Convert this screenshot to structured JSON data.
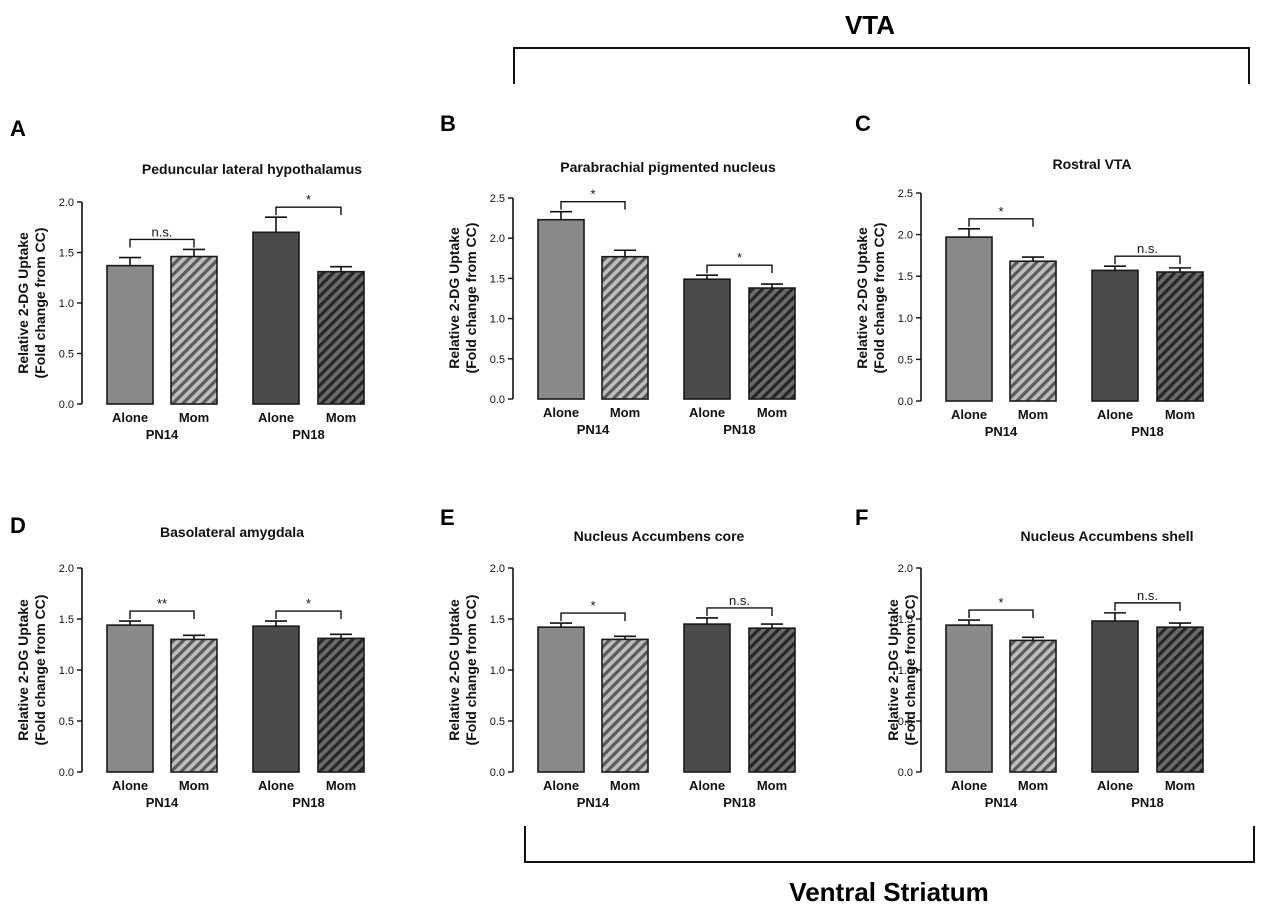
{
  "brackets": {
    "top_label": "VTA",
    "bottom_label": "Ventral Striatum"
  },
  "chart_data": [
    {
      "type": "bar",
      "panel": "A",
      "title": "Peduncular lateral hypothalamus",
      "ylabel": [
        "Relative 2-DG Uptake",
        "(Fold change from CC)"
      ],
      "ylim": [
        0,
        2.0
      ],
      "yticks": [
        "0.0",
        "0.5",
        "1.0",
        "1.5",
        "2.0"
      ],
      "groups": [
        "PN14",
        "PN18"
      ],
      "categories": [
        "Alone",
        "Mom"
      ],
      "series": [
        {
          "name": "PN14",
          "values": [
            1.37,
            1.46
          ],
          "errors": [
            0.08,
            0.07
          ]
        },
        {
          "name": "PN18",
          "values": [
            1.7,
            1.31
          ],
          "errors": [
            0.15,
            0.05
          ]
        }
      ],
      "significance": [
        "n.s.",
        "*"
      ]
    },
    {
      "type": "bar",
      "panel": "B",
      "title": "Parabrachial pigmented nucleus",
      "ylabel": [
        "Relative 2-DG Uptake",
        "(Fold change from CC)"
      ],
      "ylim": [
        0,
        2.5
      ],
      "yticks": [
        "0.0",
        "0.5",
        "1.0",
        "1.5",
        "2.0",
        "2.5"
      ],
      "groups": [
        "PN14",
        "PN18"
      ],
      "categories": [
        "Alone",
        "Mom"
      ],
      "series": [
        {
          "name": "PN14",
          "values": [
            2.23,
            1.77
          ],
          "errors": [
            0.1,
            0.08
          ]
        },
        {
          "name": "PN18",
          "values": [
            1.49,
            1.38
          ],
          "errors": [
            0.05,
            0.05
          ]
        }
      ],
      "significance": [
        "*",
        "*"
      ]
    },
    {
      "type": "bar",
      "panel": "C",
      "title": "Rostral VTA",
      "ylabel": [
        "Relative 2-DG Uptake",
        "(Fold change from CC)"
      ],
      "ylim": [
        0,
        2.5
      ],
      "yticks": [
        "0.0",
        "0.5",
        "1.0",
        "1.5",
        "2.0",
        "2.5"
      ],
      "groups": [
        "PN14",
        "PN18"
      ],
      "categories": [
        "Alone",
        "Mom"
      ],
      "series": [
        {
          "name": "PN14",
          "values": [
            1.97,
            1.68
          ],
          "errors": [
            0.1,
            0.05
          ]
        },
        {
          "name": "PN18",
          "values": [
            1.57,
            1.55
          ],
          "errors": [
            0.05,
            0.05
          ]
        }
      ],
      "significance": [
        "*",
        "n.s."
      ]
    },
    {
      "type": "bar",
      "panel": "D",
      "title": "Basolateral amygdala",
      "ylabel": [
        "Relative 2-DG Uptake",
        "(Fold change from CC)"
      ],
      "ylim": [
        0,
        2.0
      ],
      "yticks": [
        "0.0",
        "0.5",
        "1.0",
        "1.5",
        "2.0"
      ],
      "groups": [
        "PN14",
        "PN18"
      ],
      "categories": [
        "Alone",
        "Mom"
      ],
      "series": [
        {
          "name": "PN14",
          "values": [
            1.44,
            1.3
          ],
          "errors": [
            0.04,
            0.04
          ]
        },
        {
          "name": "PN18",
          "values": [
            1.43,
            1.31
          ],
          "errors": [
            0.05,
            0.04
          ]
        }
      ],
      "significance": [
        "**",
        "*"
      ]
    },
    {
      "type": "bar",
      "panel": "E",
      "title": "Nucleus Accumbens core",
      "ylabel": [
        "Relative 2-DG Uptake",
        "(Fold change from CC)"
      ],
      "ylim": [
        0,
        2.0
      ],
      "yticks": [
        "0.0",
        "0.5",
        "1.0",
        "1.5",
        "2.0"
      ],
      "groups": [
        "PN14",
        "PN18"
      ],
      "categories": [
        "Alone",
        "Mom"
      ],
      "series": [
        {
          "name": "PN14",
          "values": [
            1.42,
            1.3
          ],
          "errors": [
            0.04,
            0.03
          ]
        },
        {
          "name": "PN18",
          "values": [
            1.45,
            1.41
          ],
          "errors": [
            0.06,
            0.04
          ]
        }
      ],
      "significance": [
        "*",
        "n.s."
      ]
    },
    {
      "type": "bar",
      "panel": "F",
      "title": "Nucleus Accumbens shell",
      "ylabel": [
        "Relative 2-DG Uptake",
        "(Fold change from CC)"
      ],
      "ylim": [
        0,
        2.0
      ],
      "yticks": [
        "0.0",
        "0.5",
        "1.0",
        "1.5",
        "2.0"
      ],
      "groups": [
        "PN14",
        "PN18"
      ],
      "categories": [
        "Alone",
        "Mom"
      ],
      "series": [
        {
          "name": "PN14",
          "values": [
            1.44,
            1.29
          ],
          "errors": [
            0.05,
            0.03
          ]
        },
        {
          "name": "PN18",
          "values": [
            1.48,
            1.42
          ],
          "errors": [
            0.08,
            0.04
          ]
        }
      ],
      "significance": [
        "*",
        "n.s."
      ]
    }
  ],
  "colors": {
    "alone_pn14": "#8a8a8a",
    "alone_pn18": "#4b4b4b",
    "mom_pn14_base": "#bdbdbd",
    "mom_pn14_stripe": "#5a5a5a",
    "mom_pn18_base": "#6a6a6a",
    "mom_pn18_stripe": "#262626",
    "outline": "#1a1a1a"
  }
}
